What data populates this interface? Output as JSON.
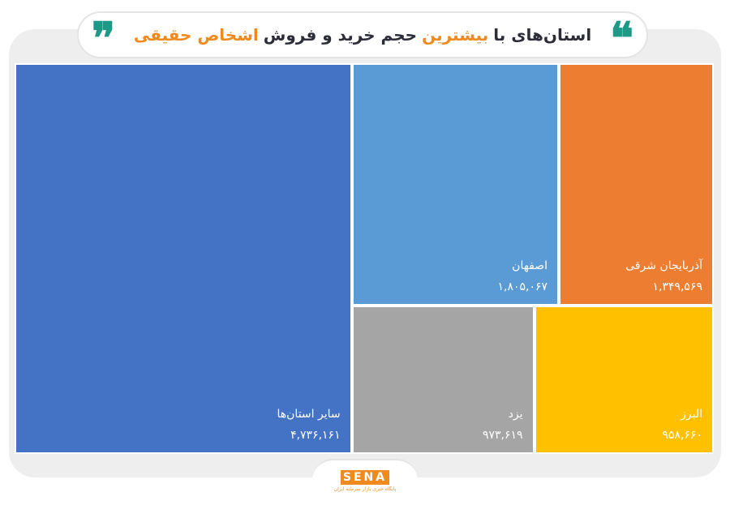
{
  "header": {
    "title_parts": [
      {
        "text": "استان‌های با",
        "color": "#2d2d3a"
      },
      {
        "text": "بیشترین",
        "color": "#f08a1e"
      },
      {
        "text": "حجم خرید و فروش",
        "color": "#2d2d3a"
      },
      {
        "text": "اشخاص حقیقی",
        "color": "#f08a1e"
      }
    ],
    "quote_open": "❞",
    "quote_close": "❝",
    "quote_color": "#1d9a86"
  },
  "chart_data": {
    "type": "treemap",
    "title": "استان‌های با بیشترین حجم خرید و فروش اشخاص حقیقی",
    "items": [
      {
        "name": "سایر استان‌ها",
        "label": "۴,۷۳۶,۱۶۱",
        "value": 4736161,
        "color": "#4472c4"
      },
      {
        "name": "اصفهان",
        "label": "۱,۸۰۵,۰۶۷",
        "value": 1805067,
        "color": "#5b9bd5"
      },
      {
        "name": "آذربایجان  شرقی",
        "label": "۱,۳۴۹,۵۶۹",
        "value": 1349569,
        "color": "#ed7d31"
      },
      {
        "name": "یزد",
        "label": "۹۷۳,۶۱۹",
        "value": 973619,
        "color": "#a5a5a5"
      },
      {
        "name": "البرز",
        "label": "۹۵۸,۶۶۰",
        "value": 958660,
        "color": "#ffc000"
      }
    ]
  },
  "footer": {
    "logo_text": "SENA",
    "logo_subtitle": "پایگاه خبری بازار سرمایه ایران",
    "logo_color": "#f08a1e"
  }
}
